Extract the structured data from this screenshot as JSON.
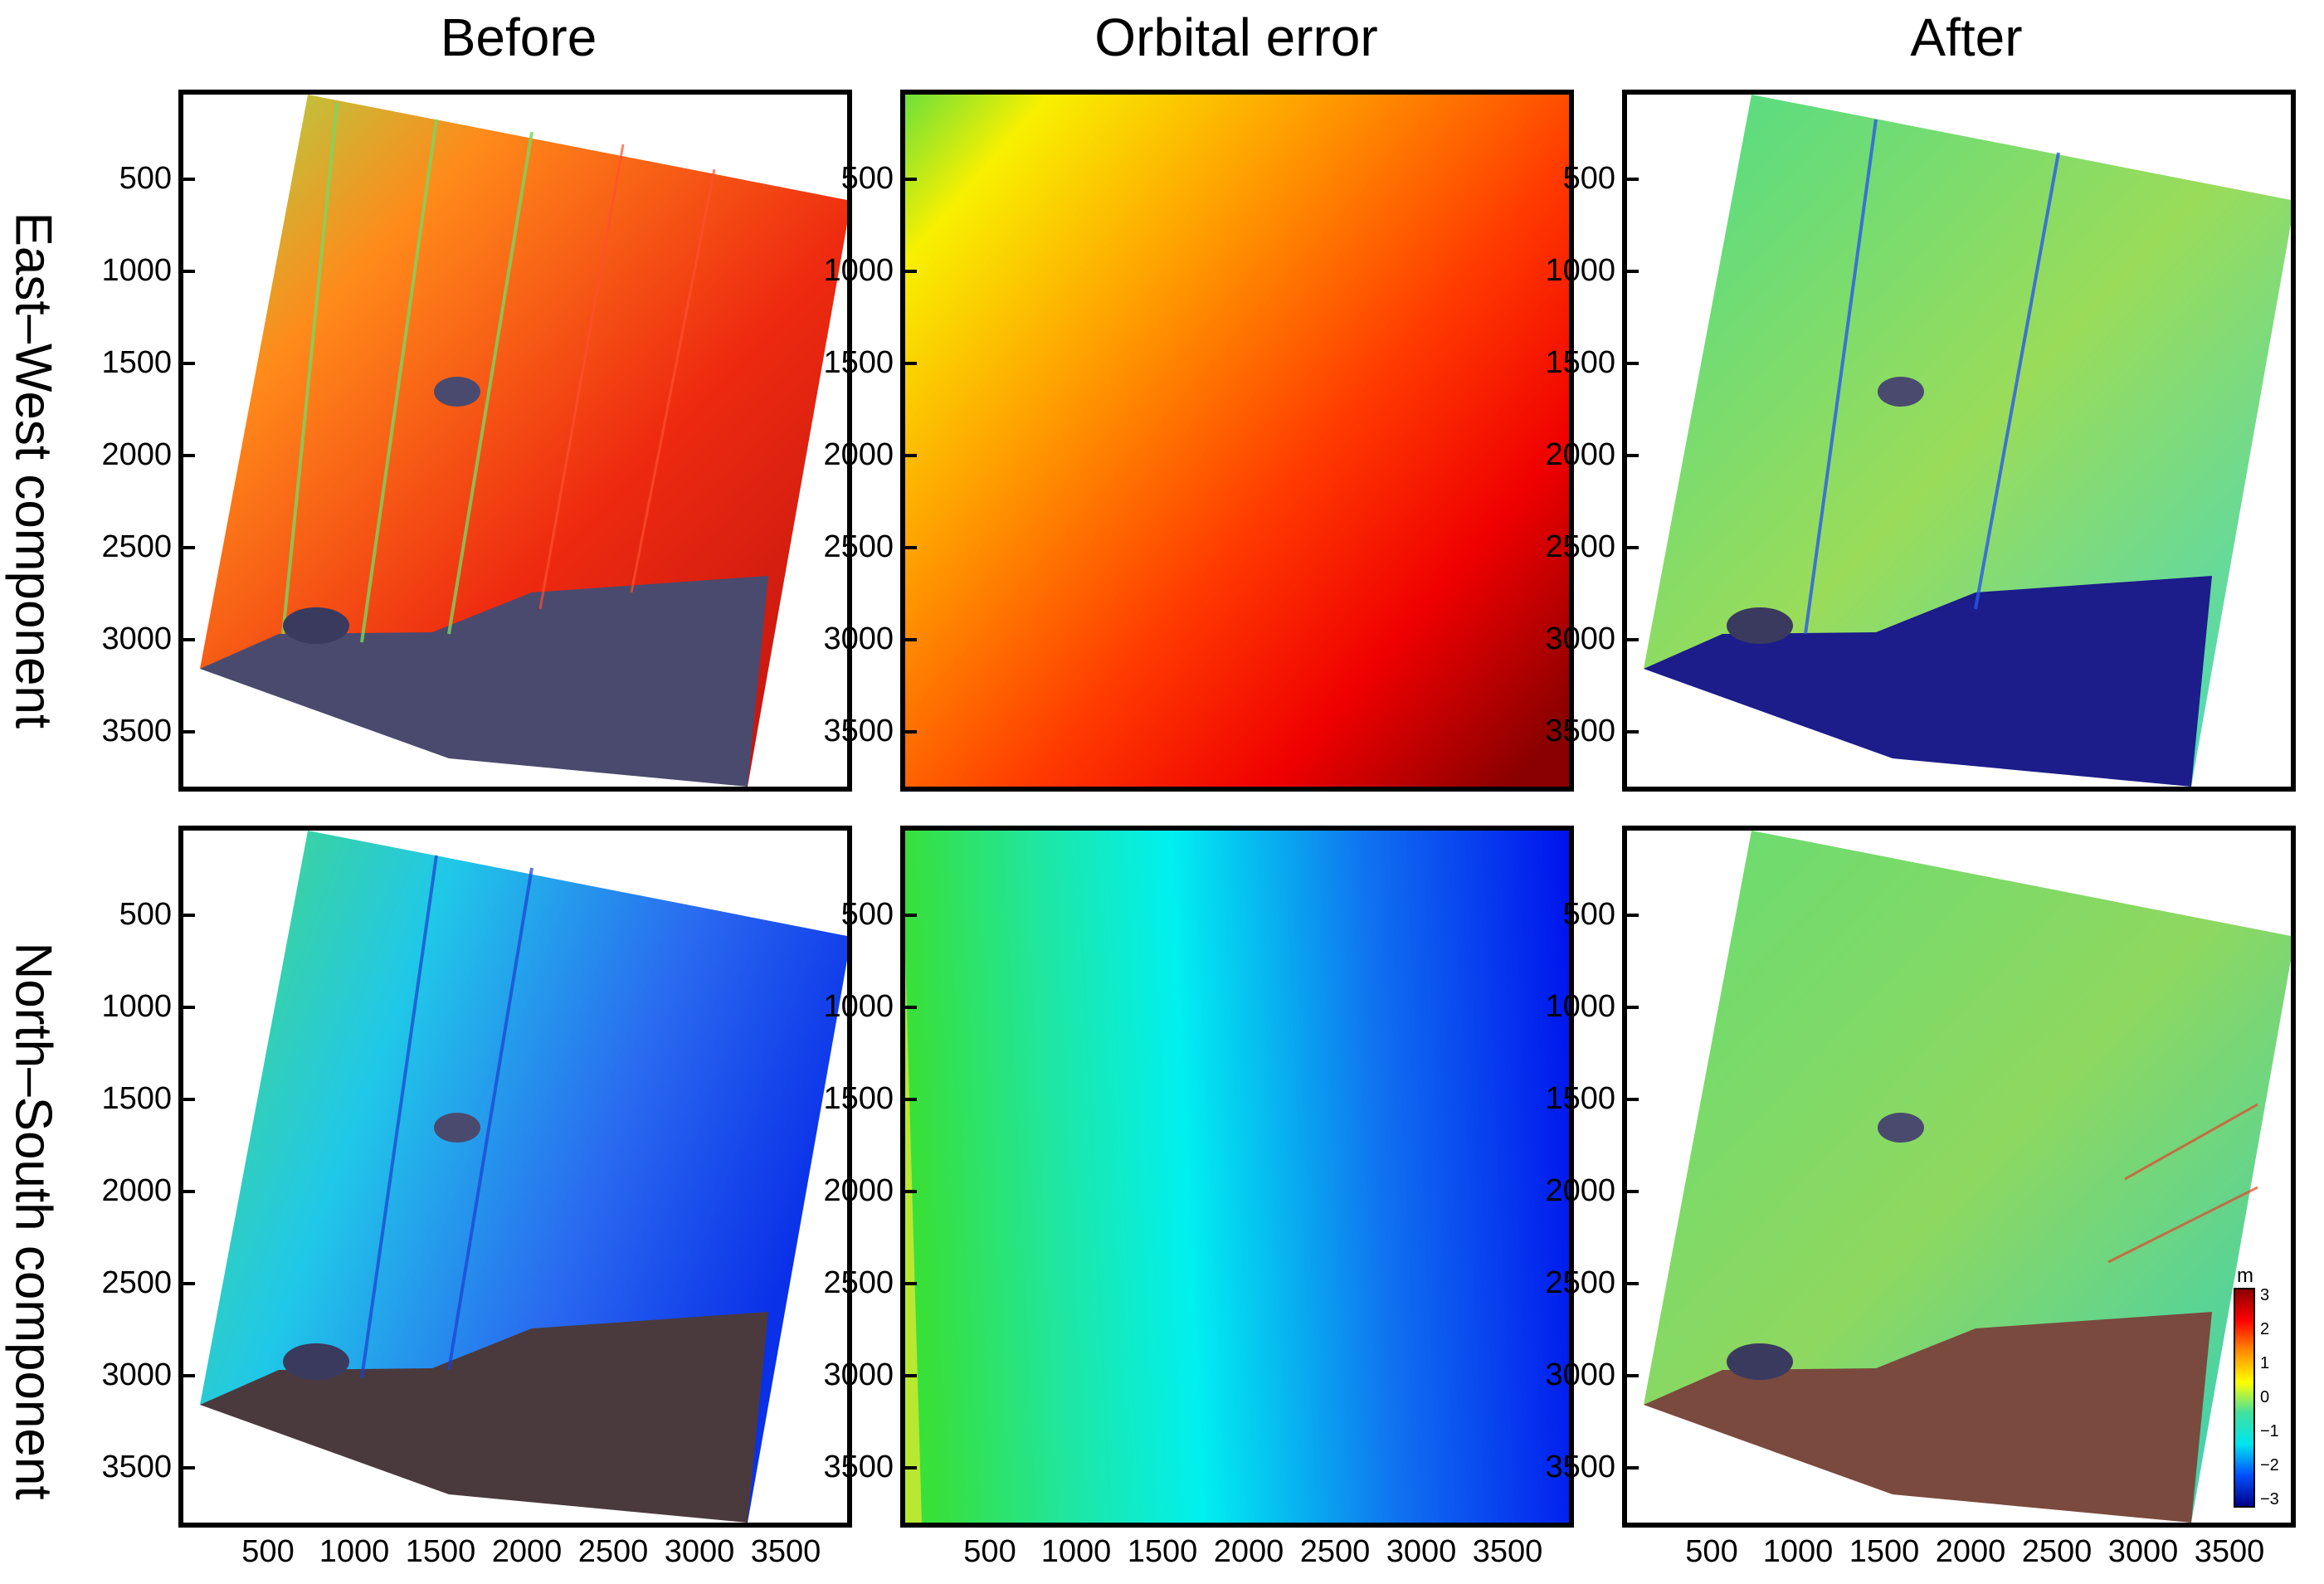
{
  "column_titles": [
    "Before",
    "Orbital error",
    "After"
  ],
  "row_labels": [
    "East–West component",
    "North–South component"
  ],
  "y_ticks": [
    "500",
    "1000",
    "1500",
    "2000",
    "2500",
    "3000",
    "3500"
  ],
  "x_ticks": [
    "500",
    "1000",
    "1500",
    "2000",
    "2500",
    "3000",
    "3500"
  ],
  "colorbar": {
    "unit": "m",
    "ticks": [
      "3",
      "2",
      "1",
      "0",
      "−1",
      "−2",
      "−3"
    ]
  },
  "colors": {
    "red": "#e8281a",
    "dark_red": "#8b0000",
    "orange": "#ff7a00",
    "yellow": "#f5f000",
    "green": "#3cdc4a",
    "cyan": "#00e5ee",
    "blue": "#0033ff",
    "dark_blue": "#00008b",
    "ocean": "#3a3a6e"
  }
}
